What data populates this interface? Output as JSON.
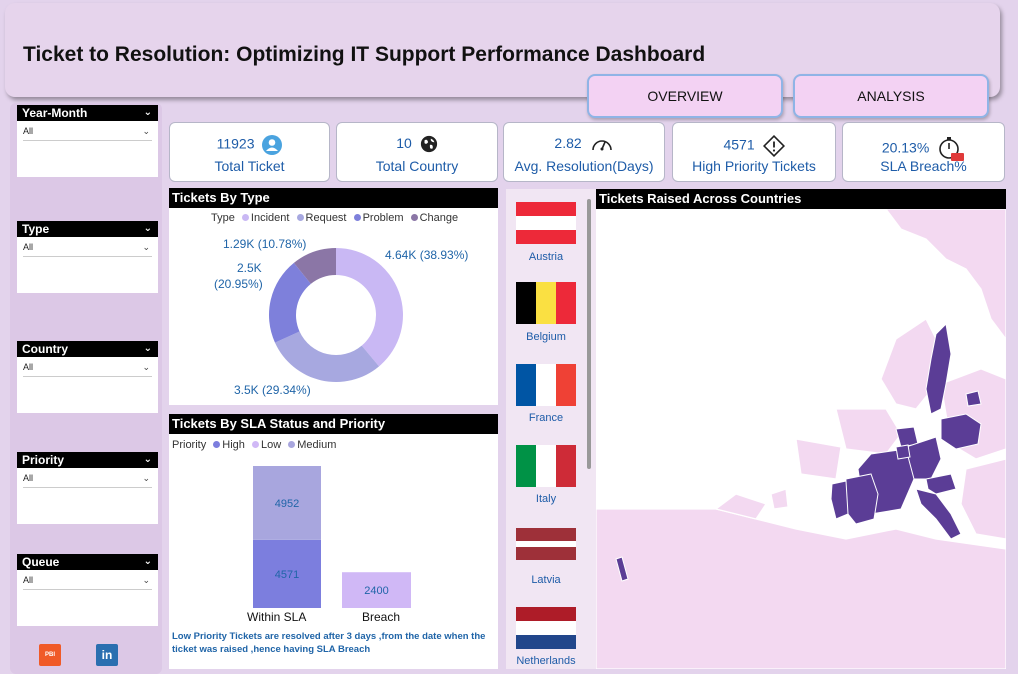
{
  "header": {
    "title": "Ticket to Resolution: Optimizing IT Support Performance Dashboard"
  },
  "nav": {
    "overview": "OVERVIEW",
    "analysis": "ANALYSIS"
  },
  "slicers": [
    {
      "title": "Year-Month",
      "value": "All"
    },
    {
      "title": "Type",
      "value": "All"
    },
    {
      "title": "Country",
      "value": "All"
    },
    {
      "title": "Priority",
      "value": "All"
    },
    {
      "title": "Queue",
      "value": "All"
    }
  ],
  "social": {
    "pbi_label": "PBI",
    "linkedin_label": "in"
  },
  "kpis": [
    {
      "value": "11923",
      "label": "Total Ticket",
      "icon": "user-icon"
    },
    {
      "value": "10",
      "label": "Total Country",
      "icon": "globe-icon"
    },
    {
      "value": "2.82",
      "label": "Avg. Resolution(Days)",
      "icon": "gauge-icon"
    },
    {
      "value": "4571",
      "label": "High Priority Tickets",
      "icon": "warning-icon"
    },
    {
      "value": "20.13%",
      "label": "SLA Breach%",
      "icon": "stopwatch-icon"
    }
  ],
  "tickets_by_type": {
    "title": "Tickets By Type",
    "legend_title": "Type",
    "legend": [
      "Incident",
      "Request",
      "Problem",
      "Change"
    ],
    "labels": [
      "4.64K (38.93%)",
      "3.5K (29.34%)",
      "2.5K",
      "(20.95%)",
      "1.29K (10.78%)"
    ]
  },
  "sla_priority": {
    "title": "Tickets By SLA Status and Priority",
    "legend_title": "Priority",
    "legend": [
      "High",
      "Low",
      "Medium"
    ],
    "categories": [
      "Within SLA",
      "Breach"
    ],
    "value_labels": [
      "4952",
      "4571",
      "2400"
    ],
    "note": "Low Priority Tickets are resolved after 3 days ,from the date when the ticket was raised ,hence having SLA Breach"
  },
  "flags": [
    {
      "name": "Austria"
    },
    {
      "name": "Belgium"
    },
    {
      "name": "France"
    },
    {
      "name": "Italy"
    },
    {
      "name": "Latvia"
    },
    {
      "name": "Netherlands"
    }
  ],
  "map": {
    "title": "Tickets Raised Across Countries"
  },
  "colors": {
    "incident": "#c9b8f4",
    "request": "#a7a8e0",
    "problem": "#7e80db",
    "change": "#8b76a6",
    "high": "#7c7ede",
    "low": "#d0b8f6",
    "medium": "#a8a6de",
    "map_land": "#f3d9f1",
    "map_highlight": "#5b3d96"
  },
  "chart_data": [
    {
      "type": "pie",
      "title": "Tickets By Type",
      "categories": [
        "Incident",
        "Request",
        "Problem",
        "Change"
      ],
      "values": [
        4640,
        3500,
        2500,
        1290
      ],
      "percent": [
        38.93,
        29.34,
        20.95,
        10.78
      ],
      "legend": "top"
    },
    {
      "type": "bar",
      "title": "Tickets By SLA Status and Priority",
      "categories": [
        "Within SLA",
        "Breach"
      ],
      "series": [
        {
          "name": "High",
          "values": [
            4571,
            0
          ]
        },
        {
          "name": "Low",
          "values": [
            0,
            2400
          ]
        },
        {
          "name": "Medium",
          "values": [
            4952,
            0
          ]
        }
      ],
      "legend": "top-left"
    }
  ]
}
